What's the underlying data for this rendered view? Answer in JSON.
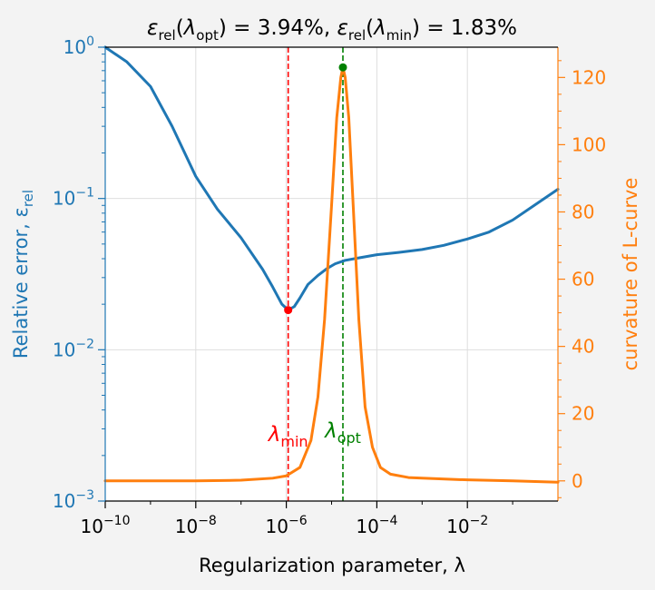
{
  "colors": {
    "background": "#f3f3f3",
    "error_series": "#1f77b4",
    "curvature_series": "#ff7f0e",
    "lambda_min_marker": "#ff0000",
    "lambda_opt_marker": "#008000",
    "grid": "#dedede"
  },
  "title": {
    "eps": "ε",
    "rel": "rel",
    "lambda": "λ",
    "opt": "opt",
    "min": "min",
    "open": "(",
    "opt_value_text": ") = 3.94%, ",
    "min_value_text": ") = 1.83%"
  },
  "chart_data": {
    "type": "line",
    "xscale": "log",
    "xlim": [
      1e-10,
      1
    ],
    "xticks": [
      1e-10,
      1e-08,
      1e-06,
      0.0001,
      0.01
    ],
    "xtick_labels": [
      {
        "base": "10",
        "exp": "−10"
      },
      {
        "base": "10",
        "exp": "−8"
      },
      {
        "base": "10",
        "exp": "−6"
      },
      {
        "base": "10",
        "exp": "−4"
      },
      {
        "base": "10",
        "exp": "−2"
      }
    ],
    "xlabel": "Regularization parameter, λ",
    "grid": true,
    "left_axis": {
      "label_text": "Relative error, ε",
      "label_sub": "rel",
      "scale": "log",
      "ylim": [
        0.001,
        1
      ],
      "yticks": [
        0.001,
        0.01,
        0.1,
        1
      ],
      "ytick_labels": [
        {
          "base": "10",
          "exp": "−3"
        },
        {
          "base": "10",
          "exp": "−2"
        },
        {
          "base": "10",
          "exp": "−1"
        },
        {
          "base": "10",
          "exp": "0"
        }
      ]
    },
    "right_axis": {
      "label": "curvature of L-curve",
      "scale": "linear",
      "ylim": [
        -6,
        129
      ],
      "yticks": [
        0,
        20,
        40,
        60,
        80,
        100,
        120
      ],
      "ytick_labels": [
        "0",
        "20",
        "40",
        "60",
        "80",
        "100",
        "120"
      ]
    },
    "series": [
      {
        "axis": "left",
        "x": [
          1e-10,
          3e-10,
          1e-09,
          3e-09,
          1e-08,
          3e-08,
          1e-07,
          3e-07,
          5e-07,
          8e-07,
          1.1e-06,
          1.5e-06,
          2e-06,
          3e-06,
          5e-06,
          8e-06,
          1.2e-05,
          2e-05,
          4e-05,
          0.0001,
          0.0003,
          0.001,
          0.003,
          0.01,
          0.03,
          0.1,
          0.3,
          1
        ],
        "y": [
          1.0,
          0.8,
          0.55,
          0.3,
          0.14,
          0.085,
          0.055,
          0.034,
          0.026,
          0.02,
          0.0183,
          0.0193,
          0.022,
          0.027,
          0.031,
          0.0345,
          0.037,
          0.039,
          0.0405,
          0.0425,
          0.044,
          0.046,
          0.049,
          0.054,
          0.06,
          0.072,
          0.09,
          0.115
        ]
      },
      {
        "axis": "right",
        "x": [
          1e-10,
          1e-08,
          1e-07,
          5e-07,
          1e-06,
          2e-06,
          3.5e-06,
          5e-06,
          7e-06,
          1e-05,
          1.3e-05,
          1.6e-05,
          1.78e-05,
          2e-05,
          2.4e-05,
          3e-05,
          4e-05,
          5.5e-05,
          8e-05,
          0.00012,
          0.0002,
          0.0005,
          0.001,
          0.01,
          0.1,
          1
        ],
        "y": [
          0,
          0,
          0.2,
          0.8,
          1.5,
          4,
          12,
          25,
          48,
          82,
          108,
          120,
          123,
          120,
          108,
          82,
          48,
          22,
          10,
          4,
          2,
          1,
          0.8,
          0.3,
          0,
          -0.4
        ]
      }
    ],
    "points": [
      {
        "name": "lambda_min",
        "axis": "left",
        "x": 1.1e-06,
        "y": 0.0183
      },
      {
        "name": "lambda_opt",
        "axis": "right",
        "x": 1.78e-05,
        "y": 123
      }
    ],
    "vlines": [
      {
        "name": "lambda_min",
        "x": 1.1e-06
      },
      {
        "name": "lambda_opt",
        "x": 1.78e-05
      }
    ],
    "annotations": [
      {
        "name": "lambda_min",
        "symbol": "λ",
        "sub": "min"
      },
      {
        "name": "lambda_opt",
        "symbol": "λ",
        "sub": "opt"
      }
    ]
  }
}
